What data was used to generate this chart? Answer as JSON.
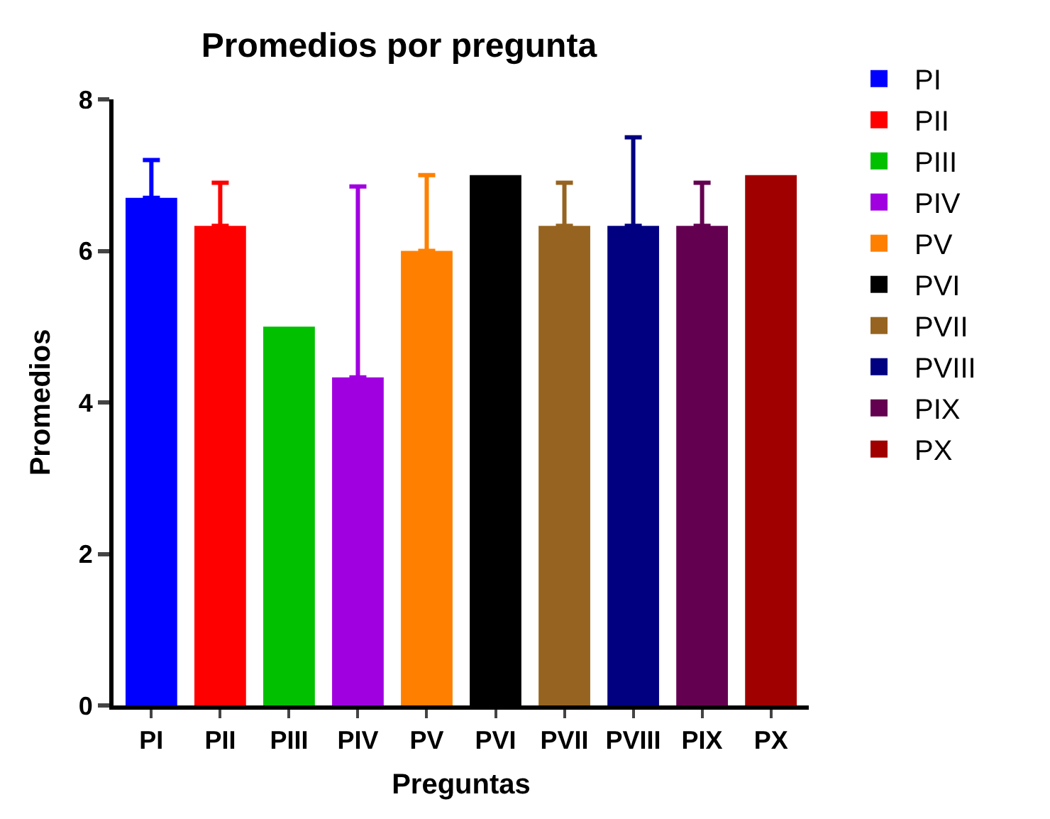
{
  "chart_data": {
    "type": "bar",
    "title": "Promedios por pregunta",
    "xlabel": "Preguntas",
    "ylabel": "Promedios",
    "categories": [
      "PI",
      "PII",
      "PIII",
      "PIV",
      "PV",
      "PVI",
      "PVII",
      "PVIII",
      "PIX",
      "PX"
    ],
    "series": [
      {
        "name": "PI",
        "color": "#0000ff",
        "values": [
          6.7,
          null,
          null,
          null,
          null,
          null,
          null,
          null,
          null,
          null
        ],
        "errors": [
          [
            6.7,
            7.2
          ],
          null,
          null,
          null,
          null,
          null,
          null,
          null,
          null,
          null
        ]
      },
      {
        "name": "PII",
        "color": "#ff0000",
        "values": [
          null,
          6.33,
          null,
          null,
          null,
          null,
          null,
          null,
          null,
          null
        ],
        "errors": [
          null,
          [
            6.33,
            6.9
          ],
          null,
          null,
          null,
          null,
          null,
          null,
          null,
          null
        ]
      },
      {
        "name": "PIII",
        "color": "#00c000",
        "values": [
          null,
          null,
          5.0,
          null,
          null,
          null,
          null,
          null,
          null,
          null
        ]
      },
      {
        "name": "PIV",
        "color": "#a000e0",
        "values": [
          null,
          null,
          null,
          4.33,
          null,
          null,
          null,
          null,
          null,
          null
        ],
        "errors": [
          null,
          null,
          null,
          [
            4.33,
            6.85
          ],
          null,
          null,
          null,
          null,
          null,
          null
        ]
      },
      {
        "name": "PV",
        "color": "#ff8000",
        "values": [
          null,
          null,
          null,
          null,
          6.0,
          null,
          null,
          null,
          null,
          null
        ],
        "errors": [
          null,
          null,
          null,
          null,
          [
            6.0,
            7.0
          ],
          null,
          null,
          null,
          null,
          null
        ]
      },
      {
        "name": "PVI",
        "color": "#000000",
        "values": [
          null,
          null,
          null,
          null,
          null,
          7.0,
          null,
          null,
          null,
          null
        ]
      },
      {
        "name": "PVII",
        "color": "#966420",
        "values": [
          null,
          null,
          null,
          null,
          null,
          null,
          6.33,
          null,
          null,
          null
        ],
        "errors": [
          null,
          null,
          null,
          null,
          null,
          null,
          [
            6.33,
            6.9
          ],
          null,
          null,
          null
        ]
      },
      {
        "name": "PVIII",
        "color": "#000080",
        "values": [
          null,
          null,
          null,
          null,
          null,
          null,
          null,
          6.33,
          null,
          null
        ],
        "errors": [
          null,
          null,
          null,
          null,
          null,
          null,
          null,
          [
            6.33,
            7.5
          ],
          null,
          null
        ]
      },
      {
        "name": "PIX",
        "color": "#640050",
        "values": [
          null,
          null,
          null,
          null,
          null,
          null,
          null,
          null,
          6.33,
          null
        ],
        "errors": [
          null,
          null,
          null,
          null,
          null,
          null,
          null,
          null,
          [
            6.33,
            6.9
          ],
          null
        ]
      },
      {
        "name": "PX",
        "color": "#a00000",
        "values": [
          null,
          null,
          null,
          null,
          null,
          null,
          null,
          null,
          null,
          7.0
        ]
      }
    ],
    "ylim": [
      0,
      8
    ],
    "yticks": [
      0,
      2,
      4,
      6,
      8
    ],
    "legend": "right"
  }
}
